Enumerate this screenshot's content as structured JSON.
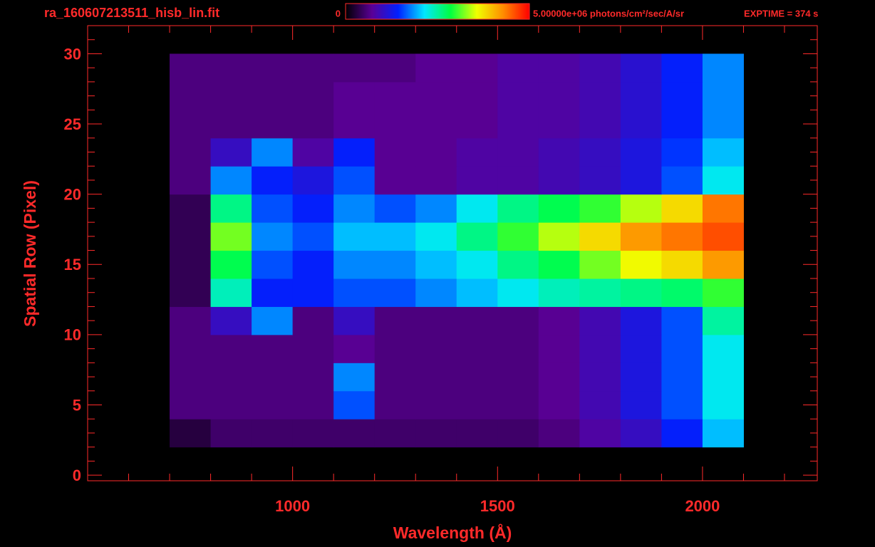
{
  "chart_data": {
    "type": "heatmap",
    "title": "ra_160607213511_hisb_lin.fit",
    "exposure": "EXPTIME = 374 s",
    "x_label": "Wavelength (Å)",
    "y_label": "Spatial Row (Pixel)",
    "xlim": [
      500,
      2280
    ],
    "ylim": [
      -0.4,
      32
    ],
    "xticks": [
      1000,
      1500,
      2000
    ],
    "xminor_ticks": [
      600,
      700,
      800,
      900,
      1100,
      1200,
      1300,
      1400,
      1600,
      1700,
      1800,
      1900,
      2100,
      2200
    ],
    "yticks": [
      0,
      5,
      10,
      15,
      20,
      25,
      30
    ],
    "yminor_ticks": [
      1,
      2,
      3,
      4,
      6,
      7,
      8,
      9,
      11,
      12,
      13,
      14,
      16,
      17,
      18,
      19,
      21,
      22,
      23,
      24,
      26,
      27,
      28,
      29,
      31
    ],
    "x_bins": [
      700,
      800,
      900,
      1000,
      1100,
      1200,
      1300,
      1400,
      1500,
      1600,
      1700,
      1800,
      1900,
      2000,
      2100
    ],
    "y_bins": [
      2,
      4,
      6,
      8,
      10,
      12,
      14,
      16,
      18,
      20,
      22,
      24,
      26,
      28,
      30
    ],
    "clim": [
      0,
      5000000
    ],
    "cticks": [
      0,
      {
        "value": 5000000,
        "label": "5.00000e+06 photons/cm²/sec/A/sr"
      }
    ],
    "colormap": [
      "#000000",
      "#5a0096",
      "#0020ff",
      "#00e6ff",
      "#00ff40",
      "#f0ff00",
      "#ff8c00",
      "#ff0000"
    ],
    "axis_color": "#ff2a2a",
    "values": [
      [
        300000,
        500000,
        500000,
        500000,
        500000,
        500000,
        500000,
        500000,
        500000,
        600000,
        800000,
        1000000,
        1400000,
        2000000
      ],
      [
        600000,
        600000,
        600000,
        600000,
        1600000,
        600000,
        600000,
        600000,
        600000,
        700000,
        900000,
        1200000,
        1600000,
        2200000
      ],
      [
        600000,
        600000,
        600000,
        600000,
        1800000,
        600000,
        600000,
        600000,
        600000,
        700000,
        900000,
        1200000,
        1600000,
        2200000
      ],
      [
        600000,
        600000,
        600000,
        600000,
        700000,
        600000,
        600000,
        600000,
        600000,
        700000,
        900000,
        1200000,
        1600000,
        2200000
      ],
      [
        600000,
        1000000,
        1800000,
        600000,
        1000000,
        600000,
        600000,
        600000,
        600000,
        700000,
        900000,
        1200000,
        1600000,
        2500000
      ],
      [
        400000,
        2400000,
        1400000,
        1400000,
        1600000,
        1600000,
        1800000,
        2000000,
        2200000,
        2400000,
        2500000,
        2600000,
        2700000,
        3000000
      ],
      [
        400000,
        2800000,
        1600000,
        1400000,
        1800000,
        1800000,
        2000000,
        2200000,
        2600000,
        2800000,
        3200000,
        3600000,
        3800000,
        4200000
      ],
      [
        400000,
        3200000,
        1800000,
        1600000,
        2000000,
        2000000,
        2200000,
        2600000,
        3000000,
        3400000,
        3800000,
        4200000,
        4400000,
        4600000
      ],
      [
        400000,
        2600000,
        1600000,
        1400000,
        1800000,
        1600000,
        1800000,
        2200000,
        2600000,
        2800000,
        3000000,
        3400000,
        3800000,
        4400000
      ],
      [
        600000,
        1800000,
        1400000,
        1200000,
        1600000,
        700000,
        700000,
        800000,
        800000,
        900000,
        1000000,
        1200000,
        1600000,
        2200000
      ],
      [
        600000,
        1000000,
        1800000,
        800000,
        1400000,
        700000,
        700000,
        800000,
        800000,
        900000,
        1000000,
        1200000,
        1500000,
        2000000
      ],
      [
        600000,
        600000,
        600000,
        600000,
        700000,
        700000,
        700000,
        700000,
        800000,
        800000,
        900000,
        1100000,
        1400000,
        1800000
      ],
      [
        600000,
        600000,
        600000,
        600000,
        700000,
        700000,
        700000,
        700000,
        800000,
        800000,
        900000,
        1100000,
        1400000,
        1800000
      ],
      [
        600000,
        600000,
        600000,
        600000,
        600000,
        600000,
        700000,
        700000,
        800000,
        800000,
        900000,
        1100000,
        1400000,
        1800000
      ]
    ]
  }
}
